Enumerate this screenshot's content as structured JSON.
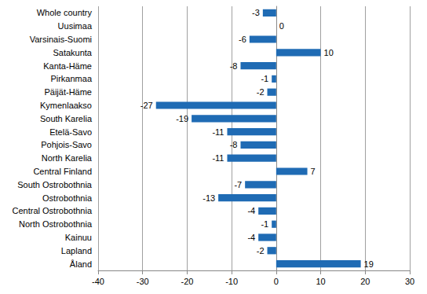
{
  "chart_data": {
    "type": "bar",
    "orientation": "horizontal",
    "categories": [
      "Whole country",
      "Uusimaa",
      "Varsinais-Suomi",
      "Satakunta",
      "Kanta-Häme",
      "Pirkanmaa",
      "Päijät-Häme",
      "Kymenlaakso",
      "South Karelia",
      "Etelä-Savo",
      "Pohjois-Savo",
      "North Karelia",
      "Central Finland",
      "South Ostrobothnia",
      "Ostrobothnia",
      "Central Ostrobothnia",
      "North Ostrobothnia",
      "Kainuu",
      "Lapland",
      "Åland"
    ],
    "values": [
      -3,
      0,
      -6,
      10,
      -8,
      -1,
      -2,
      -27,
      -19,
      -11,
      -8,
      -11,
      7,
      -7,
      -13,
      -4,
      -1,
      -4,
      -2,
      19
    ],
    "color": "#1f6bb4",
    "xlim": [
      -40,
      30
    ],
    "xticks": [
      -40,
      -30,
      -20,
      -10,
      0,
      10,
      20,
      30
    ],
    "grid": true,
    "data_labels": true
  }
}
